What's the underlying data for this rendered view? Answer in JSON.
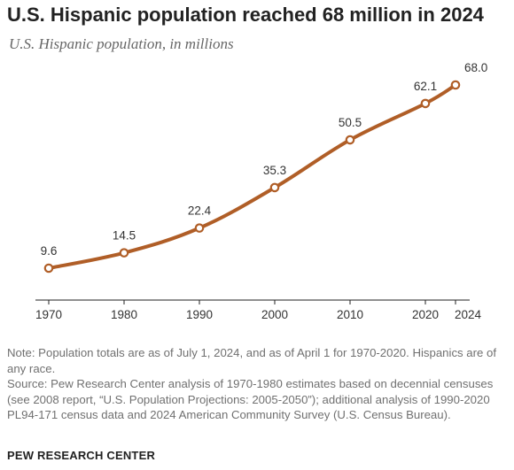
{
  "title": "U.S. Hispanic population reached 68 million in 2024",
  "subtitle": "U.S. Hispanic population, in millions",
  "chart_data": {
    "type": "line",
    "x": [
      1970,
      1980,
      1990,
      2000,
      2010,
      2020,
      2024
    ],
    "x_ticks": [
      "1970",
      "1980",
      "1990",
      "2000",
      "2010",
      "2020",
      "2024"
    ],
    "series": [
      {
        "values": [
          9.6,
          14.5,
          22.4,
          35.3,
          50.5,
          62.1,
          68.0
        ],
        "labels": [
          "9.6",
          "14.5",
          "22.4",
          "35.3",
          "50.5",
          "62.1",
          "68.0"
        ],
        "color": "#b05e27"
      }
    ],
    "xlim": [
      1970,
      2024
    ],
    "ylim": [
      0,
      70
    ],
    "grid": false
  },
  "note": "Note: Population totals are as of July 1, 2024, and as of April 1 for 1970-2020. Hispanics are of any race.",
  "source": "Source: Pew Research Center analysis of 1970-1980 estimates based on decennial censuses (see 2008 report, “U.S. Population Projections: 2005-2050”); additional analysis of 1990-2020 PL94-171 census data and 2024 American Community Survey (U.S. Census Bureau).",
  "footer": "PEW RESEARCH CENTER",
  "colors": {
    "line": "#b05e27",
    "axis": "#222222",
    "text": "#333333",
    "note": "#707070"
  }
}
